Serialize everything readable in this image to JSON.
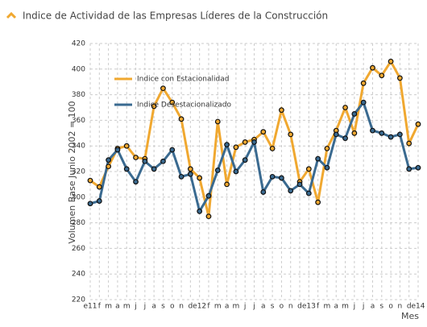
{
  "chart_data": {
    "type": "line",
    "title": "Indice de Actividad de las Empresas Líderes de la Construcción",
    "y_label": "Volumen Base Junio 2002 = 100",
    "x_label": "Mes",
    "categories": [
      "e11",
      "f",
      "m",
      "a",
      "m",
      "j",
      "j",
      "a",
      "s",
      "o",
      "n",
      "d",
      "e12",
      "f",
      "m",
      "a",
      "m",
      "j",
      "j",
      "a",
      "s",
      "o",
      "n",
      "d",
      "e13",
      "f",
      "m",
      "a",
      "m",
      "j",
      "j",
      "a",
      "s",
      "o",
      "n",
      "d",
      "e14"
    ],
    "series": [
      {
        "name": "Indice con Estacionalidad",
        "color": "#f0a830",
        "values": [
          313,
          308,
          324,
          338,
          340,
          331,
          330,
          371,
          385,
          374,
          361,
          322,
          315,
          285,
          359,
          310,
          339,
          343,
          345,
          351,
          338,
          368,
          349,
          312,
          322,
          296,
          338,
          352,
          370,
          350,
          389,
          401,
          395,
          406,
          393,
          342,
          357
        ]
      },
      {
        "name": "Indice Desestacionalizado",
        "color": "#3a6a90",
        "values": [
          295,
          297,
          329,
          337,
          322,
          312,
          328,
          322,
          328,
          337,
          316,
          318,
          289,
          301,
          321,
          341,
          320,
          329,
          343,
          304,
          316,
          315,
          305,
          310,
          303,
          330,
          323,
          349,
          346,
          365,
          374,
          352,
          350,
          347,
          349,
          322,
          323
        ]
      }
    ],
    "ylim": [
      220,
      420
    ],
    "yticks": [
      220,
      240,
      260,
      280,
      300,
      320,
      340,
      360,
      380,
      400,
      420
    ],
    "grid": true,
    "legend": "upper left"
  }
}
